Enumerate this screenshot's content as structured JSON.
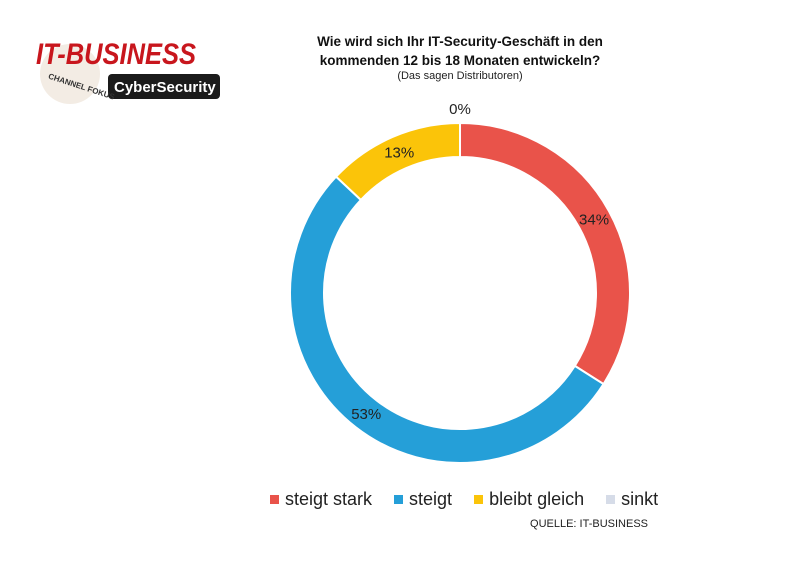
{
  "logo": {
    "brand": "IT-BUSINESS",
    "sub": "CHANNEL FOKUS",
    "badge": "CyberSecurity"
  },
  "chart_data": {
    "type": "pie",
    "variant": "donut",
    "title": "Wie wird sich Ihr IT-Security-Geschäft in den kommenden 12 bis 18 Monaten entwickeln?",
    "title_line1": "Wie wird sich Ihr IT-Security-Geschäft in den",
    "title_line2": "kommenden 12 bis 18 Monaten entwickeln?",
    "subtitle": "(Das sagen Distributoren)",
    "categories": [
      "steigt stark",
      "steigt",
      "bleibt gleich",
      "sinkt"
    ],
    "values": [
      34,
      53,
      13,
      0
    ],
    "data_labels": [
      "34%",
      "53%",
      "13%",
      "0%"
    ],
    "colors": [
      "#E9534A",
      "#259FD8",
      "#FBC409",
      "#D6DCE8"
    ],
    "legend_position": "bottom",
    "source": "QUELLE: IT-BUSINESS"
  }
}
